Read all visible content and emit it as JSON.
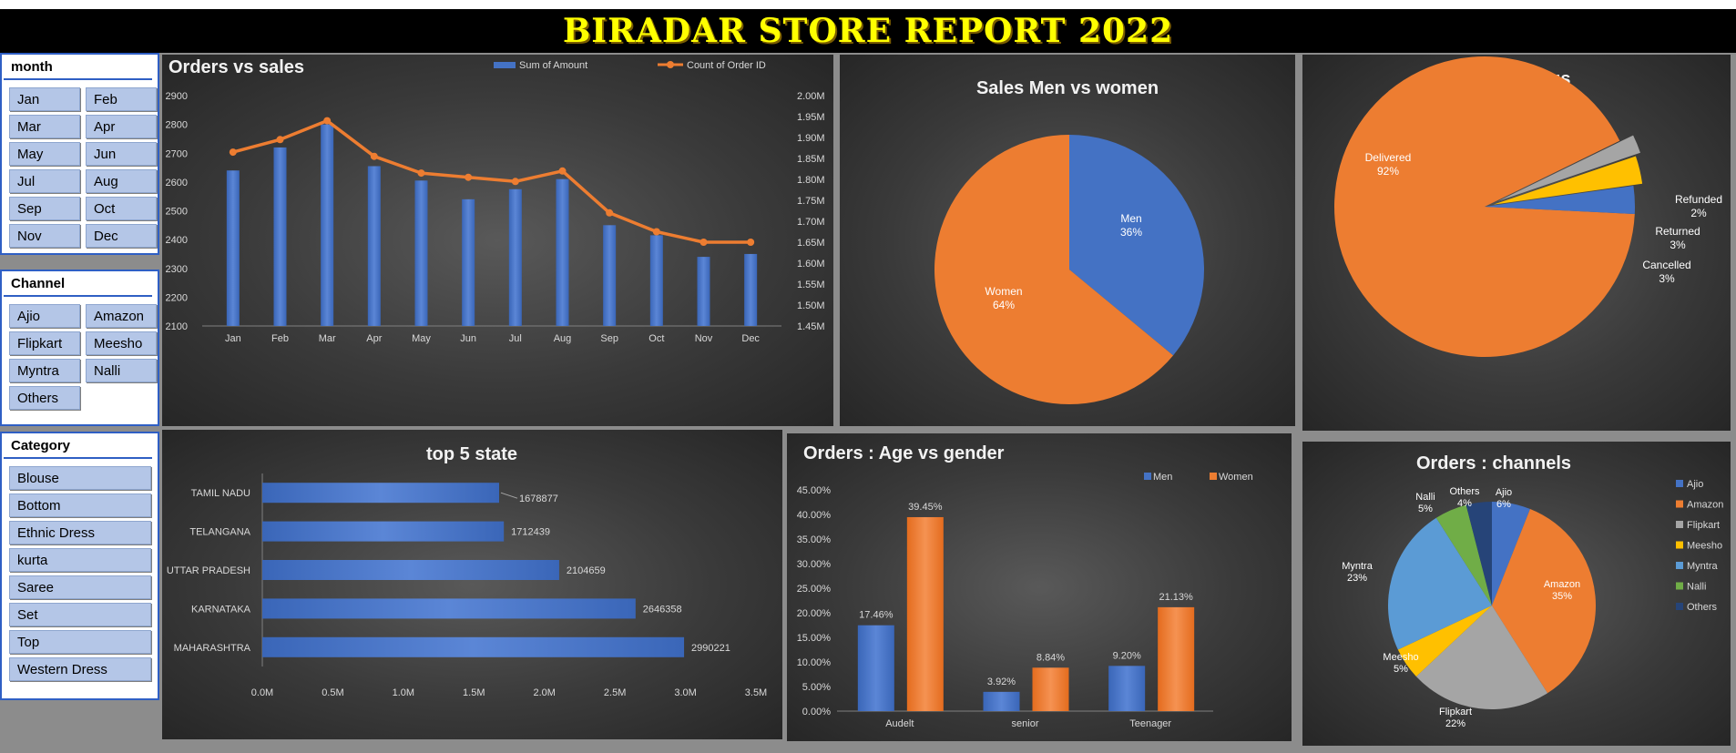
{
  "header": {
    "title": "BIRADAR STORE REPORT 2022"
  },
  "slicers": {
    "month": {
      "title": "month",
      "items": [
        "Jan",
        "Feb",
        "Mar",
        "Apr",
        "May",
        "Jun",
        "Jul",
        "Aug",
        "Sep",
        "Oct",
        "Nov",
        "Dec"
      ]
    },
    "channel": {
      "title": "Channel",
      "items": [
        "Ajio",
        "Amazon",
        "Flipkart",
        "Meesho",
        "Myntra",
        "Nalli",
        "Others"
      ]
    },
    "category": {
      "title": "Category",
      "items": [
        "Blouse",
        "Bottom",
        "Ethnic Dress",
        "kurta",
        "Saree",
        "Set",
        "Top",
        "Western Dress"
      ]
    }
  },
  "colors": {
    "blue": "#4472c4",
    "orange": "#ed7d31",
    "gray": "#a5a5a5",
    "yellow": "#ffc000",
    "lightblue": "#5b9bd5",
    "green": "#70ad47",
    "navy": "#264478",
    "text": "#d9d9d9",
    "axis": "#bfbfbf"
  },
  "chart_data": [
    {
      "id": "orders-vs-sales",
      "type": "bar",
      "title": "Orders vs sales",
      "categories": [
        "Jan",
        "Feb",
        "Mar",
        "Apr",
        "May",
        "Jun",
        "Jul",
        "Aug",
        "Sep",
        "Oct",
        "Nov",
        "Dec"
      ],
      "series": [
        {
          "name": "Sum of Amount",
          "type": "bar",
          "axis": "left",
          "values": [
            2640,
            2720,
            2800,
            2655,
            2605,
            2540,
            2575,
            2610,
            2450,
            2415,
            2340,
            2350
          ]
        },
        {
          "name": "Count of Order ID",
          "type": "line",
          "axis": "right",
          "values": [
            1.865,
            1.895,
            1.94,
            1.855,
            1.815,
            1.805,
            1.795,
            1.82,
            1.72,
            1.675,
            1.65,
            1.65
          ]
        }
      ],
      "ylim": [
        2100,
        2900
      ],
      "yticks": [
        2100,
        2200,
        2300,
        2400,
        2500,
        2600,
        2700,
        2800,
        2900
      ],
      "y2lim": [
        1.45,
        2.0
      ],
      "y2ticks": [
        "1.45M",
        "1.50M",
        "1.55M",
        "1.60M",
        "1.65M",
        "1.70M",
        "1.75M",
        "1.80M",
        "1.85M",
        "1.90M",
        "1.95M",
        "2.00M"
      ],
      "legend_position": "top-right"
    },
    {
      "id": "sales-men-women",
      "type": "pie",
      "title": "Sales Men vs women",
      "slices": [
        {
          "label": "Men",
          "pct": "36%",
          "value": 36
        },
        {
          "label": "Women",
          "pct": "64%",
          "value": 64
        }
      ]
    },
    {
      "id": "order-status",
      "type": "pie",
      "title": "Order status",
      "slices": [
        {
          "label": "Delivered",
          "pct": "92%",
          "value": 92
        },
        {
          "label": "Refunded",
          "pct": "2%",
          "value": 2
        },
        {
          "label": "Returned",
          "pct": "3%",
          "value": 3
        },
        {
          "label": "Cancelled",
          "pct": "3%",
          "value": 3
        }
      ]
    },
    {
      "id": "top-5-state",
      "type": "bar",
      "orientation": "horizontal",
      "title": "top 5 state",
      "categories": [
        "TAMIL NADU",
        "TELANGANA",
        "UTTAR PRADESH",
        "KARNATAKA",
        "MAHARASHTRA"
      ],
      "values": [
        1678877,
        1712439,
        2104659,
        2646358,
        2990221
      ],
      "xlim": [
        0,
        3500000
      ],
      "xticks": [
        "0.0M",
        "0.5M",
        "1.0M",
        "1.5M",
        "2.0M",
        "2.5M",
        "3.0M",
        "3.5M"
      ]
    },
    {
      "id": "age-vs-gender",
      "type": "bar",
      "title": "Orders : Age vs gender",
      "categories": [
        "Audelt",
        "senior",
        "Teenager"
      ],
      "series": [
        {
          "name": "Men",
          "values": [
            17.46,
            3.92,
            9.2
          ],
          "labels": [
            "17.46%",
            "3.92%",
            "9.20%"
          ]
        },
        {
          "name": "Women",
          "values": [
            39.45,
            8.84,
            21.13
          ],
          "labels": [
            "39.45%",
            "8.84%",
            "21.13%"
          ]
        }
      ],
      "ylim": [
        0,
        45
      ],
      "yticks": [
        "0.00%",
        "5.00%",
        "10.00%",
        "15.00%",
        "20.00%",
        "25.00%",
        "30.00%",
        "35.00%",
        "40.00%",
        "45.00%"
      ],
      "legend_position": "top-right"
    },
    {
      "id": "orders-channels",
      "type": "pie",
      "title": "Orders : channels",
      "slices": [
        {
          "label": "Ajio",
          "pct": "6%",
          "value": 6
        },
        {
          "label": "Amazon",
          "pct": "35%",
          "value": 35
        },
        {
          "label": "Flipkart",
          "pct": "22%",
          "value": 22
        },
        {
          "label": "Meesho",
          "pct": "5%",
          "value": 5
        },
        {
          "label": "Myntra",
          "pct": "23%",
          "value": 23
        },
        {
          "label": "Nalli",
          "pct": "5%",
          "value": 5
        },
        {
          "label": "Others",
          "pct": "4%",
          "value": 4
        }
      ],
      "legend_position": "right"
    }
  ]
}
